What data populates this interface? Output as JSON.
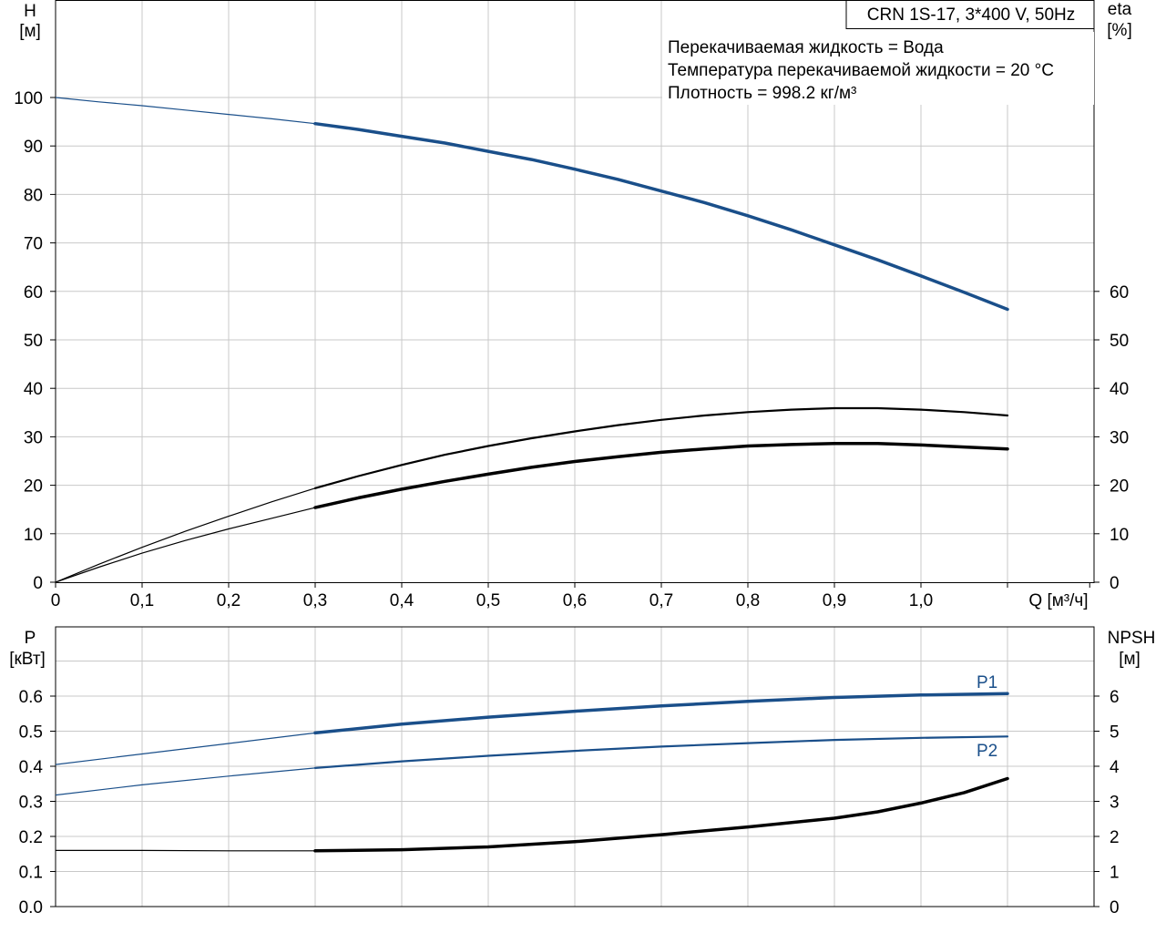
{
  "chart_data": [
    {
      "type": "line",
      "title": "CRN 1S-17, 3*400 V, 50Hz",
      "xlabel": "Q [м³/ч]",
      "ylabel_left_name": "H",
      "ylabel_left_unit": "[м]",
      "ylabel_right_name": "eta",
      "ylabel_right_unit": "[%]",
      "xlim": [
        0,
        1.1
      ],
      "ylim": [
        0,
        100
      ],
      "x_ticks": [
        "0",
        "0,1",
        "0,2",
        "0,3",
        "0,4",
        "0,5",
        "0,6",
        "0,7",
        "0,8",
        "0,9",
        "1,0"
      ],
      "y_left_ticks": [
        "0",
        "10",
        "20",
        "30",
        "40",
        "50",
        "60",
        "70",
        "80",
        "90",
        "100"
      ],
      "y_right_ticks": [
        "0",
        "10",
        "20",
        "30",
        "40",
        "50",
        "60"
      ],
      "info_lines": [
        "Перекачиваемая жидкость = Вода",
        "Температура перекачиваемой жидкости = 20 °C",
        "Плотность = 998.2 кг/м³"
      ],
      "series": [
        {
          "key": "H",
          "color": "#1a4f8a",
          "operating_from": 0.3,
          "x": [
            0,
            0.05,
            0.1,
            0.15,
            0.2,
            0.25,
            0.3,
            0.35,
            0.4,
            0.45,
            0.5,
            0.55,
            0.6,
            0.65,
            0.7,
            0.75,
            0.8,
            0.85,
            0.9,
            0.95,
            1.0,
            1.05,
            1.1
          ],
          "values": [
            100,
            99.1,
            98.3,
            97.4,
            96.5,
            95.6,
            94.6,
            93.4,
            92.0,
            90.6,
            88.9,
            87.2,
            85.2,
            83.1,
            80.7,
            78.3,
            75.6,
            72.7,
            69.6,
            66.5,
            63.2,
            59.8,
            56.3
          ]
        },
        {
          "key": "eta-thin",
          "color": "#000000",
          "operating_from": 0.3,
          "x": [
            0,
            0.05,
            0.1,
            0.15,
            0.2,
            0.25,
            0.3,
            0.35,
            0.4,
            0.45,
            0.5,
            0.55,
            0.6,
            0.65,
            0.7,
            0.75,
            0.8,
            0.85,
            0.9,
            0.95,
            1.0,
            1.05,
            1.1
          ],
          "values": [
            0,
            3.7,
            7.2,
            10.5,
            13.6,
            16.6,
            19.4,
            21.9,
            24.2,
            26.3,
            28.1,
            29.7,
            31.1,
            32.4,
            33.5,
            34.4,
            35.1,
            35.6,
            35.9,
            35.9,
            35.6,
            35.1,
            34.4
          ]
        },
        {
          "key": "eta-thick",
          "color": "#000000",
          "operating_from": 0.3,
          "x": [
            0,
            0.05,
            0.1,
            0.15,
            0.2,
            0.25,
            0.3,
            0.35,
            0.4,
            0.45,
            0.5,
            0.55,
            0.6,
            0.65,
            0.7,
            0.75,
            0.8,
            0.85,
            0.9,
            0.95,
            1.0,
            1.05,
            1.1
          ],
          "values": [
            0,
            3.1,
            6.0,
            8.6,
            11.0,
            13.2,
            15.4,
            17.4,
            19.2,
            20.8,
            22.3,
            23.7,
            24.9,
            25.9,
            26.8,
            27.5,
            28.1,
            28.4,
            28.6,
            28.6,
            28.3,
            27.9,
            27.5
          ]
        }
      ]
    },
    {
      "type": "line",
      "xlim": [
        0,
        1.1
      ],
      "ylim": [
        0,
        0.8
      ],
      "ylabel_left_name": "P",
      "ylabel_left_unit": "[кВт]",
      "ylabel_right_name": "NPSH",
      "ylabel_right_unit": "[м]",
      "y_left_ticks": [
        "0.0",
        "0.1",
        "0.2",
        "0.3",
        "0.4",
        "0.5",
        "0.6"
      ],
      "y_right_ticks": [
        "0",
        "1",
        "2",
        "3",
        "4",
        "5",
        "6"
      ],
      "series": [
        {
          "key": "P1",
          "name": "P1",
          "color": "#1a4f8a",
          "operating_from": 0.3,
          "x": [
            0,
            0.1,
            0.2,
            0.3,
            0.4,
            0.5,
            0.6,
            0.7,
            0.8,
            0.9,
            1.0,
            1.1
          ],
          "values": [
            0.405,
            0.435,
            0.465,
            0.495,
            0.52,
            0.54,
            0.557,
            0.572,
            0.585,
            0.596,
            0.603,
            0.607
          ]
        },
        {
          "key": "P2",
          "name": "P2",
          "color": "#1a4f8a",
          "operating_from": 0.3,
          "x": [
            0,
            0.1,
            0.2,
            0.3,
            0.4,
            0.5,
            0.6,
            0.7,
            0.8,
            0.9,
            1.0,
            1.1
          ],
          "values": [
            0.318,
            0.347,
            0.372,
            0.395,
            0.414,
            0.43,
            0.444,
            0.456,
            0.466,
            0.475,
            0.481,
            0.485
          ]
        },
        {
          "key": "NPSH",
          "color": "#000000",
          "axis": "right",
          "operating_from": 0.3,
          "x": [
            0,
            0.1,
            0.2,
            0.3,
            0.4,
            0.5,
            0.6,
            0.7,
            0.8,
            0.9,
            0.95,
            1.0,
            1.05,
            1.1
          ],
          "values": [
            1.6,
            1.6,
            1.59,
            1.59,
            1.62,
            1.7,
            1.85,
            2.05,
            2.27,
            2.52,
            2.7,
            2.95,
            3.25,
            3.65
          ]
        }
      ]
    }
  ]
}
